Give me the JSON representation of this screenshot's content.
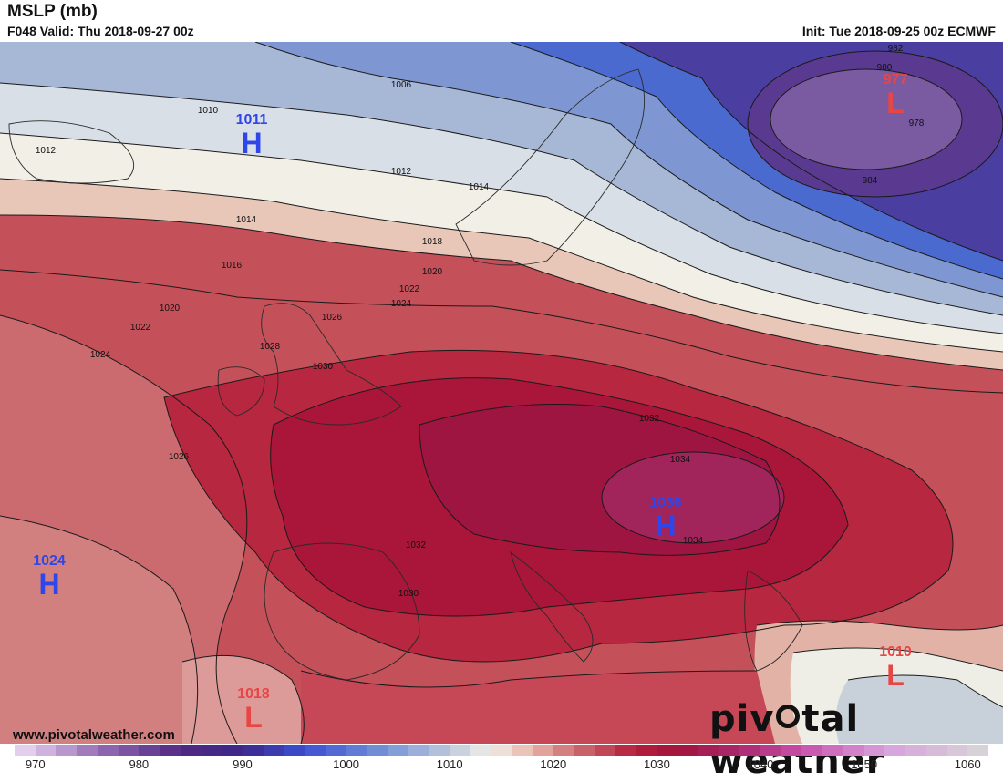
{
  "header": {
    "title": "MSLP (mb)",
    "valid": "F048 Valid: Thu 2018-09-27 00z",
    "init": "Init: Tue 2018-09-25 00z ECMWF"
  },
  "footer": {
    "website": "www.pivotalweather.com",
    "brand_pre": "piv",
    "brand_post": "tal weather"
  },
  "colorbar": {
    "min": 968,
    "max": 1062,
    "step": 2,
    "labels": [
      "970",
      "980",
      "990",
      "1000",
      "1010",
      "1020",
      "1030",
      "1040",
      "1050",
      "1060"
    ]
  },
  "pressure_centers": [
    {
      "type": "H",
      "value": "1011",
      "color": "#2f46e8"
    },
    {
      "type": "L",
      "value": "977",
      "color": "#e84545"
    },
    {
      "type": "H",
      "value": "1036",
      "color": "#2f46e8"
    },
    {
      "type": "H",
      "value": "1024",
      "color": "#2f46e8"
    },
    {
      "type": "L",
      "value": "1018",
      "color": "#e84545"
    },
    {
      "type": "L",
      "value": "1010",
      "color": "#e84545"
    }
  ],
  "isobar_labels": [
    "1010",
    "1012",
    "1006",
    "1014",
    "1016",
    "1018",
    "1020",
    "1022",
    "1024",
    "1026",
    "1028",
    "1030",
    "1032",
    "1034",
    "982",
    "980",
    "978",
    "984"
  ]
}
